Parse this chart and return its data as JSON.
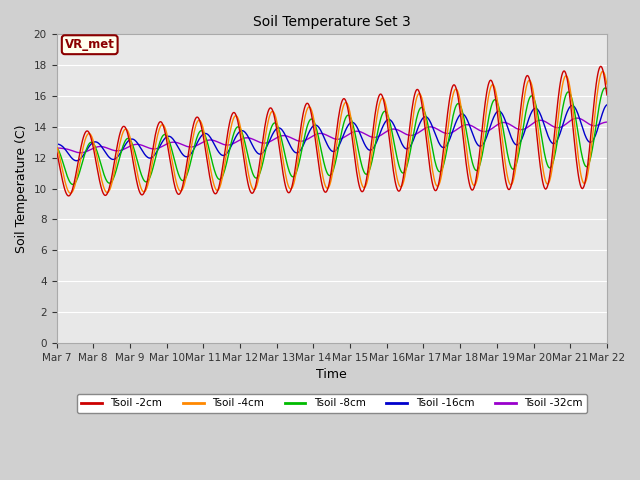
{
  "title": "Soil Temperature Set 3",
  "xlabel": "Time",
  "ylabel": "Soil Temperature (C)",
  "ylim": [
    0,
    20
  ],
  "yticks": [
    0,
    2,
    4,
    6,
    8,
    10,
    12,
    14,
    16,
    18,
    20
  ],
  "plot_bg": "#e8e8e8",
  "grid_color": "white",
  "annotation_text": "VR_met",
  "annotation_color": "#8B0000",
  "annotation_bg": "#ffffee",
  "series_colors": [
    "#cc0000",
    "#ff8800",
    "#00bb00",
    "#0000cc",
    "#9900cc"
  ],
  "series_labels": [
    "Tsoil -2cm",
    "Tsoil -4cm",
    "Tsoil -8cm",
    "Tsoil -16cm",
    "Tsoil -32cm"
  ],
  "num_days": 15,
  "points_per_day": 48
}
